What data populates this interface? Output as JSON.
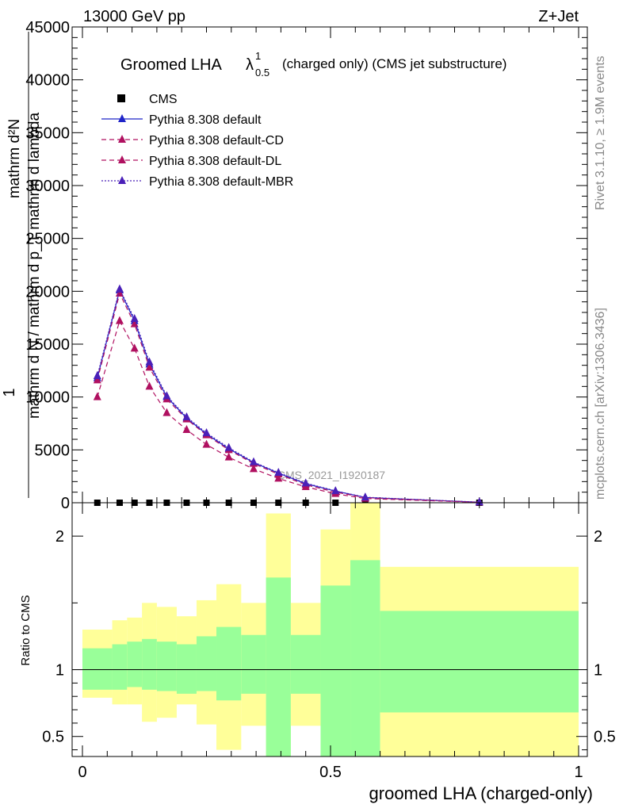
{
  "header": {
    "energy_label": "13000 GeV pp",
    "process_label": "Z+Jet"
  },
  "side_labels": {
    "rivet": "Rivet 3.1.10, ≥ 1.9M events",
    "mcplots": "mcplots.cern.ch [arXiv:1306.3436]"
  },
  "watermark": "CMS_2021_I1920187",
  "chart_data": [
    {
      "type": "line",
      "title": {
        "main": "Groomed LHA",
        "lambda": "λ",
        "sup": "1",
        "sub": "0.5",
        "rest": "(charged only) (CMS jet substructure)"
      },
      "ylabel": {
        "prefix": "1",
        "num": "mathrm d²N",
        "den": "mathrm d N / mathrm d p_T mathrm d lambda"
      },
      "xlim": [
        0,
        1
      ],
      "ylim": [
        0,
        45000
      ],
      "y_ticks": [
        0,
        5000,
        10000,
        15000,
        20000,
        25000,
        30000,
        35000,
        40000,
        45000
      ],
      "y_tick_labels": [
        "0",
        "5000",
        "10000",
        "15000",
        "20000",
        "25000",
        "30000",
        "35000",
        "40000",
        "45000"
      ],
      "legend_position": "top-left",
      "colors": {
        "cms": "#000000",
        "default": "#1f24c8",
        "cd": "#b01060",
        "dl": "#b01060",
        "mbr": "#4a20b8"
      },
      "x": [
        0.03,
        0.075,
        0.105,
        0.135,
        0.17,
        0.21,
        0.25,
        0.295,
        0.345,
        0.395,
        0.45,
        0.51,
        0.57,
        0.8
      ],
      "series": [
        {
          "name": "CMS",
          "style": "square",
          "values": [
            0,
            0,
            0,
            0,
            0,
            0,
            0,
            0,
            0,
            0,
            0,
            0,
            0,
            0
          ]
        },
        {
          "name": "Pythia 8.308 default",
          "style": "solid",
          "values": [
            11800,
            20100,
            17200,
            13100,
            10000,
            8000,
            6500,
            5100,
            3800,
            2800,
            1800,
            1100,
            500,
            50
          ]
        },
        {
          "name": "Pythia 8.308 default-CD",
          "style": "dashed",
          "values": [
            11600,
            19800,
            16900,
            12800,
            9800,
            7900,
            6400,
            5000,
            3700,
            2700,
            1700,
            1000,
            480,
            45
          ]
        },
        {
          "name": "Pythia 8.308 default-DL",
          "style": "dashed",
          "values": [
            10000,
            17200,
            14600,
            11000,
            8500,
            6900,
            5500,
            4300,
            3200,
            2300,
            1500,
            850,
            400,
            40
          ]
        },
        {
          "name": "Pythia 8.308 default-MBR",
          "style": "dotted",
          "values": [
            12000,
            20200,
            17400,
            13300,
            10100,
            8100,
            6600,
            5200,
            3850,
            2850,
            1850,
            1120,
            520,
            55
          ]
        }
      ]
    },
    {
      "type": "area",
      "ylabel": "Ratio to CMS",
      "xlabel": "groomed LHA (charged-only)",
      "xlim": [
        0,
        1
      ],
      "ylim": [
        0.35,
        2.25
      ],
      "y_ticks": [
        0.5,
        1,
        2
      ],
      "y_tick_labels": [
        "0.5",
        "1",
        "2"
      ],
      "x_ticks": [
        0,
        0.5,
        1
      ],
      "x_tick_labels": [
        "0",
        "0.5",
        "1"
      ],
      "colors": {
        "inner": "#99ff99",
        "outer": "#ffff99"
      },
      "bins": [
        {
          "x0": 0.0,
          "x1": 0.06,
          "in_lo": 0.85,
          "in_hi": 1.16,
          "out_lo": 0.79,
          "out_hi": 1.3
        },
        {
          "x0": 0.06,
          "x1": 0.09,
          "in_lo": 0.85,
          "in_hi": 1.19,
          "out_lo": 0.74,
          "out_hi": 1.37
        },
        {
          "x0": 0.09,
          "x1": 0.12,
          "in_lo": 0.87,
          "in_hi": 1.21,
          "out_lo": 0.74,
          "out_hi": 1.39
        },
        {
          "x0": 0.12,
          "x1": 0.15,
          "in_lo": 0.85,
          "in_hi": 1.23,
          "out_lo": 0.61,
          "out_hi": 1.5
        },
        {
          "x0": 0.15,
          "x1": 0.19,
          "in_lo": 0.84,
          "in_hi": 1.21,
          "out_lo": 0.64,
          "out_hi": 1.47
        },
        {
          "x0": 0.19,
          "x1": 0.23,
          "in_lo": 0.82,
          "in_hi": 1.19,
          "out_lo": 0.74,
          "out_hi": 1.4
        },
        {
          "x0": 0.23,
          "x1": 0.27,
          "in_lo": 0.84,
          "in_hi": 1.25,
          "out_lo": 0.59,
          "out_hi": 1.52
        },
        {
          "x0": 0.27,
          "x1": 0.32,
          "in_lo": 0.77,
          "in_hi": 1.32,
          "out_lo": 0.4,
          "out_hi": 1.64
        },
        {
          "x0": 0.32,
          "x1": 0.37,
          "in_lo": 0.82,
          "in_hi": 1.26,
          "out_lo": 0.58,
          "out_hi": 1.5
        },
        {
          "x0": 0.37,
          "x1": 0.42,
          "in_lo": 0.35,
          "in_hi": 1.69,
          "out_lo": 0.35,
          "out_hi": 2.17
        },
        {
          "x0": 0.42,
          "x1": 0.48,
          "in_lo": 0.82,
          "in_hi": 1.26,
          "out_lo": 0.58,
          "out_hi": 1.5
        },
        {
          "x0": 0.48,
          "x1": 0.54,
          "in_lo": 0.35,
          "in_hi": 1.63,
          "out_lo": 0.35,
          "out_hi": 2.05
        },
        {
          "x0": 0.54,
          "x1": 0.6,
          "in_lo": 0.35,
          "in_hi": 1.82,
          "out_lo": 0.35,
          "out_hi": 2.25
        },
        {
          "x0": 0.6,
          "x1": 1.0,
          "in_lo": 0.68,
          "in_hi": 1.44,
          "out_lo": 0.35,
          "out_hi": 1.77
        }
      ]
    }
  ]
}
